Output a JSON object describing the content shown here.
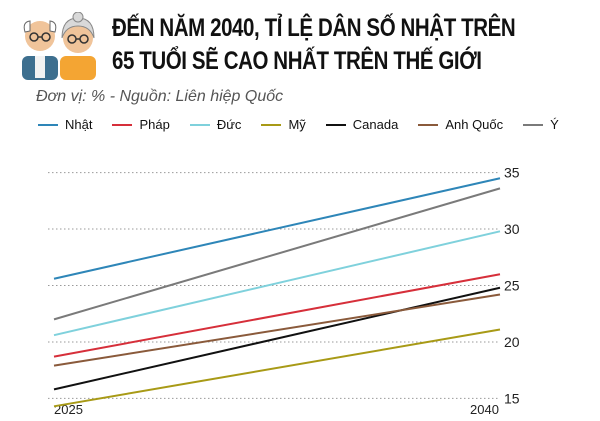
{
  "header": {
    "title_line1": "ĐẾN NĂM 2040, TỈ LỆ DÂN SỐ NHẬT TRÊN",
    "title_line2": "65 TUỔI SẼ CAO NHẤT TRÊN THẾ GIỚI",
    "subtitle": "Đơn vị: % - Nguồn: Liên hiệp Quốc",
    "avatar_icon": "elderly-couple-icon"
  },
  "chart_data": {
    "type": "line",
    "x": [
      "2025",
      "2040"
    ],
    "yticks": [
      15,
      20,
      25,
      30,
      35
    ],
    "ylim": [
      13,
      37
    ],
    "grid": true,
    "legend_position": "top",
    "series": [
      {
        "name": "Nhật",
        "values": [
          25.6,
          34.5
        ],
        "color": "#2e86b8"
      },
      {
        "name": "Pháp",
        "values": [
          18.7,
          26.0
        ],
        "color": "#d62f3a"
      },
      {
        "name": "Đức",
        "values": [
          20.6,
          29.8
        ],
        "color": "#7fd1dc"
      },
      {
        "name": "Mỹ",
        "values": [
          14.3,
          21.1
        ],
        "color": "#a89a16"
      },
      {
        "name": "Canada",
        "values": [
          15.8,
          24.8
        ],
        "color": "#111111"
      },
      {
        "name": "Anh Quốc",
        "values": [
          17.9,
          24.2
        ],
        "color": "#8a5a3b"
      },
      {
        "name": "Ý",
        "values": [
          22.0,
          33.6
        ],
        "color": "#7a7a7a"
      }
    ]
  }
}
